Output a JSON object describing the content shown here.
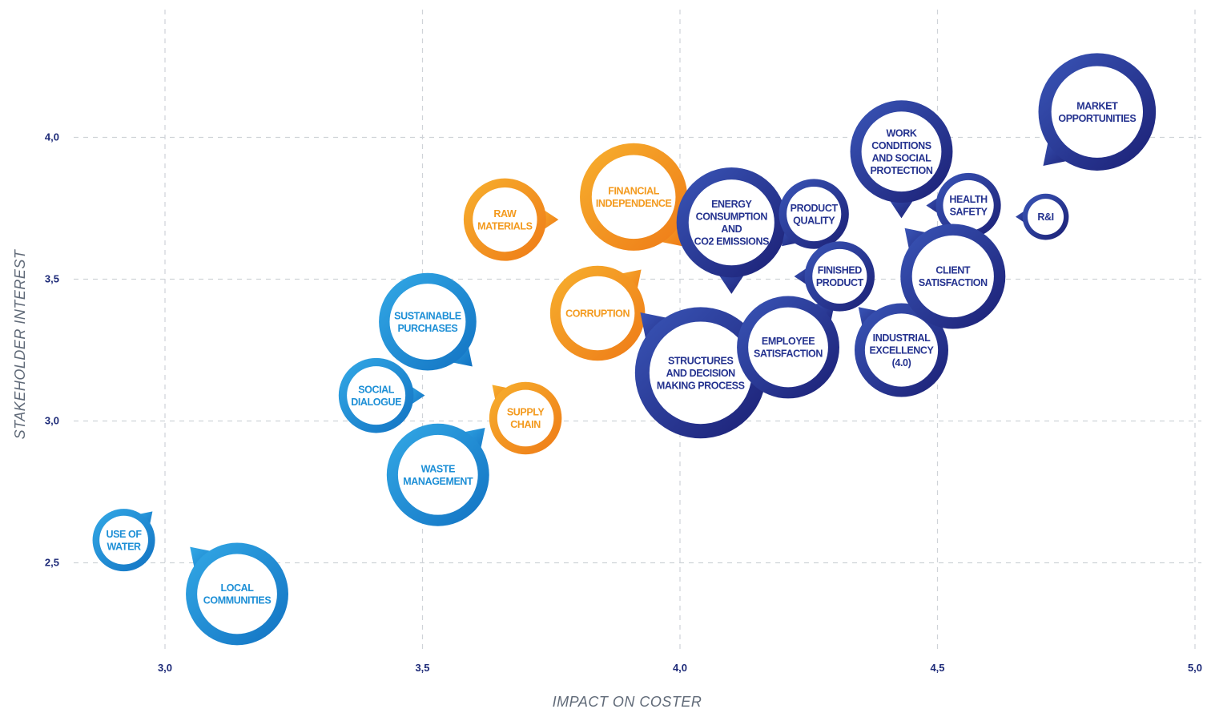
{
  "chart_data": {
    "type": "scatter",
    "title": "",
    "xlabel": "IMPACT ON COSTER",
    "ylabel": "STAKEHOLDER INTEREST",
    "xlim": [
      2.8,
      5.0
    ],
    "ylim": [
      2.15,
      4.4
    ],
    "x_ticks": [
      {
        "value": 3.0,
        "label": "3,0"
      },
      {
        "value": 3.5,
        "label": "3,5"
      },
      {
        "value": 4.0,
        "label": "4,0"
      },
      {
        "value": 4.5,
        "label": "4,5"
      },
      {
        "value": 5.0,
        "label": "5,0"
      }
    ],
    "y_ticks": [
      {
        "value": 2.5,
        "label": "2,5"
      },
      {
        "value": 3.0,
        "label": "3,0"
      },
      {
        "value": 3.5,
        "label": "3,5"
      },
      {
        "value": 4.0,
        "label": "4,0"
      }
    ],
    "grid": true,
    "colors": {
      "orange": "#f39a1e",
      "light_blue": "#1d8fd6",
      "dark_blue": "#24328f"
    },
    "points": [
      {
        "label": [
          "USE OF",
          "WATER"
        ],
        "x": 2.92,
        "y": 2.58,
        "r": 0.5,
        "color": "light_blue",
        "tail": "top-right"
      },
      {
        "label": [
          "LOCAL",
          "COMMUNITIES"
        ],
        "x": 3.14,
        "y": 2.39,
        "r": 0.82,
        "color": "light_blue",
        "tail": "top-left"
      },
      {
        "label": [
          "SOCIAL",
          "DIALOGUE"
        ],
        "x": 3.41,
        "y": 3.09,
        "r": 0.6,
        "color": "light_blue",
        "tail": "right"
      },
      {
        "label": [
          "SUSTAINABLE",
          "PURCHASES"
        ],
        "x": 3.51,
        "y": 3.35,
        "r": 0.78,
        "color": "light_blue",
        "tail": "bottom-right"
      },
      {
        "label": [
          "WASTE",
          "MANAGEMENT"
        ],
        "x": 3.53,
        "y": 2.81,
        "r": 0.82,
        "color": "light_blue",
        "tail": "top-right"
      },
      {
        "label": [
          "RAW",
          "MATERIALS"
        ],
        "x": 3.66,
        "y": 3.71,
        "r": 0.66,
        "color": "orange",
        "tail": "right"
      },
      {
        "label": [
          "SUPPLY",
          "CHAIN"
        ],
        "x": 3.7,
        "y": 3.01,
        "r": 0.58,
        "color": "orange",
        "tail": "top-left"
      },
      {
        "label": [
          "CORRUPTION"
        ],
        "x": 3.84,
        "y": 3.38,
        "r": 0.76,
        "color": "orange",
        "tail": "top-right"
      },
      {
        "label": [
          "FINANCIAL",
          "INDEPENDENCE"
        ],
        "x": 3.91,
        "y": 3.79,
        "r": 0.86,
        "color": "orange",
        "tail": "bottom-right"
      },
      {
        "label": [
          "ENERGY",
          "CONSUMPTION",
          "AND",
          "CO2 EMISSIONS"
        ],
        "x": 4.1,
        "y": 3.7,
        "r": 0.88,
        "color": "dark_blue",
        "tail": "bottom"
      },
      {
        "label": [
          "STRUCTURES",
          "AND DECISION",
          "MAKING PROCESS"
        ],
        "x": 4.04,
        "y": 3.17,
        "r": 1.05,
        "color": "dark_blue",
        "tail": "top-left"
      },
      {
        "label": [
          "EMPLOYEE",
          "SATISFACTION"
        ],
        "x": 4.21,
        "y": 3.26,
        "r": 0.82,
        "color": "dark_blue",
        "tail": "top-right"
      },
      {
        "label": [
          "PRODUCT",
          "QUALITY"
        ],
        "x": 4.26,
        "y": 3.73,
        "r": 0.56,
        "color": "dark_blue",
        "tail": "bottom-left"
      },
      {
        "label": [
          "FINISHED",
          "PRODUCT"
        ],
        "x": 4.31,
        "y": 3.51,
        "r": 0.56,
        "color": "dark_blue",
        "tail": "left"
      },
      {
        "label": [
          "WORK",
          "CONDITIONS",
          "AND SOCIAL",
          "PROTECTION"
        ],
        "x": 4.43,
        "y": 3.95,
        "r": 0.82,
        "color": "dark_blue",
        "tail": "bottom"
      },
      {
        "label": [
          "INDUSTRIAL",
          "EXCELLENCY",
          "(4.0)"
        ],
        "x": 4.43,
        "y": 3.25,
        "r": 0.75,
        "color": "dark_blue",
        "tail": "top-left"
      },
      {
        "label": [
          "HEALTH",
          "SAFETY"
        ],
        "x": 4.56,
        "y": 3.76,
        "r": 0.52,
        "color": "dark_blue",
        "tail": "left"
      },
      {
        "label": [
          "CLIENT",
          "SATISFACTION"
        ],
        "x": 4.53,
        "y": 3.51,
        "r": 0.84,
        "color": "dark_blue",
        "tail": "top-left"
      },
      {
        "label": [
          "R&I"
        ],
        "x": 4.71,
        "y": 3.72,
        "r": 0.37,
        "color": "dark_blue",
        "tail": "left"
      },
      {
        "label": [
          "MARKET",
          "OPPORTUNITIES"
        ],
        "x": 4.81,
        "y": 4.09,
        "r": 0.94,
        "color": "dark_blue",
        "tail": "bottom-left"
      }
    ]
  }
}
